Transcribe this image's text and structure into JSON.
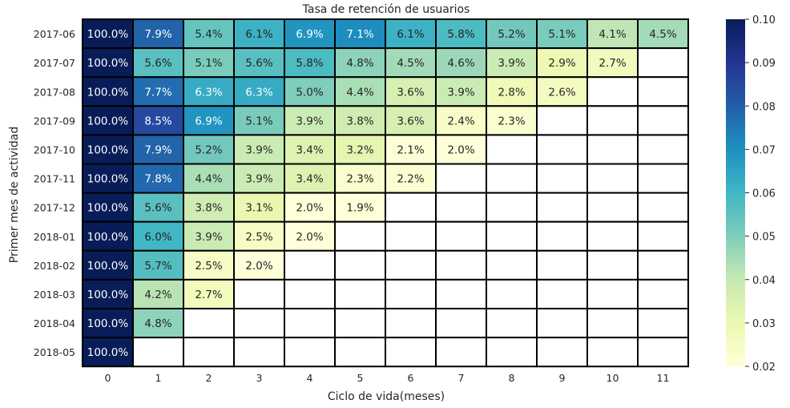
{
  "chart_data": {
    "type": "heatmap",
    "title": "Tasa de retención de usuarios",
    "xlabel": "Ciclo de vida(meses)",
    "ylabel": "Primer mes de actividad",
    "x_ticks": [
      "0",
      "1",
      "2",
      "3",
      "4",
      "5",
      "6",
      "7",
      "8",
      "9",
      "10",
      "11"
    ],
    "y_ticks": [
      "2017-06",
      "2017-07",
      "2017-08",
      "2017-09",
      "2017-10",
      "2017-11",
      "2017-12",
      "2018-01",
      "2018-02",
      "2018-03",
      "2018-04",
      "2018-05"
    ],
    "values": [
      [
        1.0,
        0.079,
        0.054,
        0.061,
        0.069,
        0.071,
        0.061,
        0.058,
        0.052,
        0.051,
        0.041,
        0.045
      ],
      [
        1.0,
        0.056,
        0.051,
        0.056,
        0.058,
        0.048,
        0.045,
        0.046,
        0.039,
        0.029,
        0.027,
        null
      ],
      [
        1.0,
        0.077,
        0.063,
        0.063,
        0.05,
        0.044,
        0.036,
        0.039,
        0.028,
        0.026,
        null,
        null
      ],
      [
        1.0,
        0.085,
        0.069,
        0.051,
        0.039,
        0.038,
        0.036,
        0.024,
        0.023,
        null,
        null,
        null
      ],
      [
        1.0,
        0.079,
        0.052,
        0.039,
        0.034,
        0.032,
        0.021,
        0.02,
        null,
        null,
        null,
        null
      ],
      [
        1.0,
        0.078,
        0.044,
        0.039,
        0.034,
        0.023,
        0.022,
        null,
        null,
        null,
        null,
        null
      ],
      [
        1.0,
        0.056,
        0.038,
        0.031,
        0.02,
        0.019,
        null,
        null,
        null,
        null,
        null,
        null
      ],
      [
        1.0,
        0.06,
        0.039,
        0.025,
        0.02,
        null,
        null,
        null,
        null,
        null,
        null,
        null
      ],
      [
        1.0,
        0.057,
        0.025,
        0.02,
        null,
        null,
        null,
        null,
        null,
        null,
        null,
        null
      ],
      [
        1.0,
        0.042,
        0.027,
        null,
        null,
        null,
        null,
        null,
        null,
        null,
        null,
        null
      ],
      [
        1.0,
        0.048,
        null,
        null,
        null,
        null,
        null,
        null,
        null,
        null,
        null,
        null
      ],
      [
        1.0,
        null,
        null,
        null,
        null,
        null,
        null,
        null,
        null,
        null,
        null,
        null
      ]
    ],
    "cell_labels": [
      [
        "100.0%",
        "7.9%",
        "5.4%",
        "6.1%",
        "6.9%",
        "7.1%",
        "6.1%",
        "5.8%",
        "5.2%",
        "5.1%",
        "4.1%",
        "4.5%"
      ],
      [
        "100.0%",
        "5.6%",
        "5.1%",
        "5.6%",
        "5.8%",
        "4.8%",
        "4.5%",
        "4.6%",
        "3.9%",
        "2.9%",
        "2.7%",
        ""
      ],
      [
        "100.0%",
        "7.7%",
        "6.3%",
        "6.3%",
        "5.0%",
        "4.4%",
        "3.6%",
        "3.9%",
        "2.8%",
        "2.6%",
        "",
        ""
      ],
      [
        "100.0%",
        "8.5%",
        "6.9%",
        "5.1%",
        "3.9%",
        "3.8%",
        "3.6%",
        "2.4%",
        "2.3%",
        "",
        "",
        ""
      ],
      [
        "100.0%",
        "7.9%",
        "5.2%",
        "3.9%",
        "3.4%",
        "3.2%",
        "2.1%",
        "2.0%",
        "",
        "",
        "",
        ""
      ],
      [
        "100.0%",
        "7.8%",
        "4.4%",
        "3.9%",
        "3.4%",
        "2.3%",
        "2.2%",
        "",
        "",
        "",
        "",
        ""
      ],
      [
        "100.0%",
        "5.6%",
        "3.8%",
        "3.1%",
        "2.0%",
        "1.9%",
        "",
        "",
        "",
        "",
        "",
        ""
      ],
      [
        "100.0%",
        "6.0%",
        "3.9%",
        "2.5%",
        "2.0%",
        "",
        "",
        "",
        "",
        "",
        "",
        ""
      ],
      [
        "100.0%",
        "5.7%",
        "2.5%",
        "2.0%",
        "",
        "",
        "",
        "",
        "",
        "",
        "",
        ""
      ],
      [
        "100.0%",
        "4.2%",
        "2.7%",
        "",
        "",
        "",
        "",
        "",
        "",
        "",
        "",
        ""
      ],
      [
        "100.0%",
        "4.8%",
        "",
        "",
        "",
        "",
        "",
        "",
        "",
        "",
        "",
        ""
      ],
      [
        "100.0%",
        "",
        "",
        "",
        "",
        "",
        "",
        "",
        "",
        "",
        "",
        ""
      ]
    ],
    "colormap": "YlGnBu",
    "vmin": 0.02,
    "vmax": 0.1,
    "colorbar_ticks": [
      "0.02",
      "0.03",
      "0.04",
      "0.05",
      "0.06",
      "0.07",
      "0.08",
      "0.09",
      "0.10"
    ],
    "colorbar_placement": "right",
    "cell_border_color": "#000000"
  }
}
